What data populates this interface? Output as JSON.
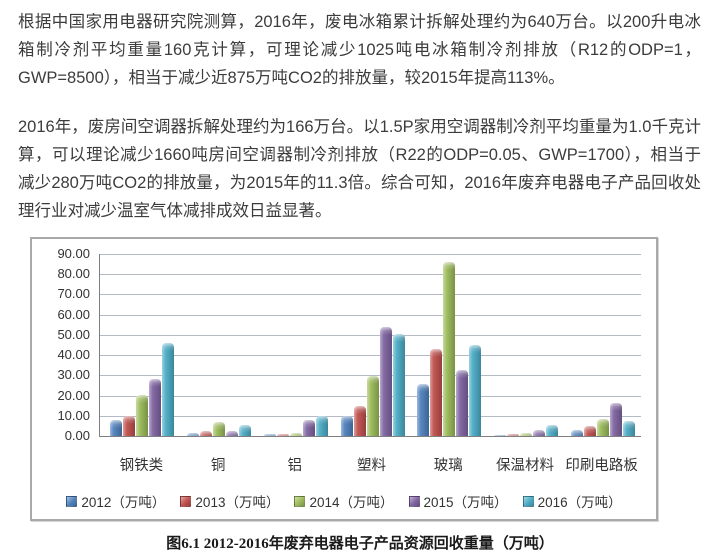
{
  "article": {
    "paragraph1": "根据中国家用电器研究院测算，2016年，废电冰箱累计拆解处理约为640万台。以200升电冰箱制冷剂平均重量160克计算，可理论减少1025吨电冰箱制冷剂排放（R12的ODP=1，GWP=8500），相当于减少近875万吨CO2的排放量，较2015年提高113%。",
    "paragraph2": "2016年，废房间空调器拆解处理约为166万台。以1.5P家用空调器制冷剂平均重量为1.0千克计算，可以理论减少1660吨房间空调器制冷剂排放（R22的ODP=0.05、GWP=1700），相当于减少280万吨CO2的排放量，为2015年的11.3倍。综合可知，2016年废弃电器电子产品回收处理行业对减少温室气体减排成效日益显著。"
  },
  "chart_data": {
    "type": "bar",
    "title": "",
    "caption": "图6.1 2012-2016年废弃电器电子产品资源回收重量（万吨）",
    "categories": [
      "钢铁类",
      "铜",
      "铝",
      "塑料",
      "玻璃",
      "保温材料",
      "印刷电路板"
    ],
    "series": [
      {
        "name": "2012（万吨）",
        "color": "#4f81bd",
        "values": [
          8.0,
          1.5,
          0.8,
          10.0,
          25.5,
          0.5,
          3.0
        ]
      },
      {
        "name": "2013（万吨）",
        "color": "#c0504d",
        "values": [
          10.0,
          2.5,
          0.8,
          15.0,
          43.0,
          0.8,
          5.0
        ]
      },
      {
        "name": "2014（万吨）",
        "color": "#9bbb59",
        "values": [
          20.5,
          7.0,
          1.5,
          29.5,
          86.0,
          1.5,
          8.5
        ]
      },
      {
        "name": "2015（万吨）",
        "color": "#8064a2",
        "values": [
          28.0,
          2.5,
          8.0,
          54.0,
          32.5,
          3.0,
          16.5
        ]
      },
      {
        "name": "2016（万吨）",
        "color": "#4bacc6",
        "values": [
          46.0,
          5.5,
          10.0,
          50.5,
          45.0,
          5.5,
          7.5
        ]
      }
    ],
    "ylim": [
      0,
      90
    ],
    "ytick_step": 10,
    "ytick_labels": [
      "90.00",
      "80.00",
      "70.00",
      "60.00",
      "50.00",
      "40.00",
      "30.00",
      "20.00",
      "10.00",
      "0.00"
    ],
    "grid": true,
    "legend_position": "bottom"
  }
}
